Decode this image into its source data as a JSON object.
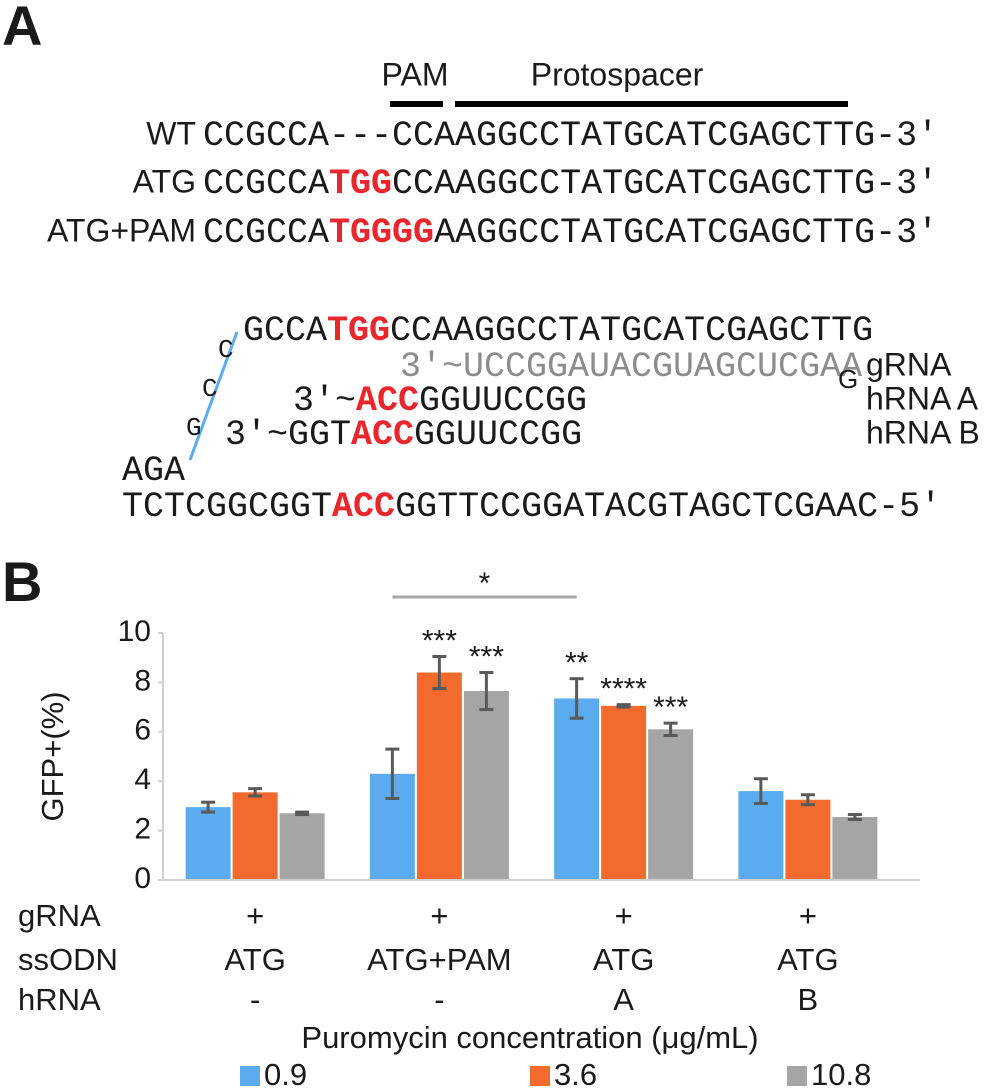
{
  "panel_a": {
    "label": "A",
    "pam": "PAM",
    "protospacer": "Protospacer",
    "rows": [
      {
        "label": "WT",
        "segments": [
          {
            "text": "CCGCCA---CCAAGGCCTATGCATCGAGCTTG-3′",
            "color": "#1a1a1a",
            "bold": false
          }
        ]
      },
      {
        "label": "ATG",
        "segments": [
          {
            "text": "CCGCCA",
            "color": "#1a1a1a",
            "bold": false
          },
          {
            "text": "TGG",
            "color": "#e8262b",
            "bold": true
          },
          {
            "text": "CCAAGGCCTATGCATCGAGCTTG-3′",
            "color": "#1a1a1a",
            "bold": false
          }
        ]
      },
      {
        "label": "ATG+PAM",
        "segments": [
          {
            "text": "CCGCCA",
            "color": "#1a1a1a",
            "bold": false
          },
          {
            "text": "TGGGG",
            "color": "#e8262b",
            "bold": true
          },
          {
            "text": "AAGGCCTATGCATCGAGCTTG-3′",
            "color": "#1a1a1a",
            "bold": false
          }
        ]
      }
    ],
    "duplex": [
      {
        "segments": [
          {
            "text": "GCCA",
            "color": "#1a1a1a",
            "bold": false
          },
          {
            "text": "TGG",
            "color": "#e8262b",
            "bold": true
          },
          {
            "text": "CCAAGGCCTATGCATCGAGCTTG",
            "color": "#1a1a1a",
            "bold": false
          }
        ]
      },
      {
        "segments": [
          {
            "text": "3′~UCCGGAUACGUAGCUCGAA",
            "color": "#8c8c8c",
            "bold": false
          }
        ],
        "tail": {
          "text": "G",
          "color": "#e8262b"
        },
        "label": "gRNA"
      },
      {
        "segments": [
          {
            "text": "3′~",
            "color": "#1a1a1a",
            "bold": false
          },
          {
            "text": "ACC",
            "color": "#e8262b",
            "bold": true
          },
          {
            "text": "GGUUCCGG",
            "color": "#1a1a1a",
            "bold": false
          }
        ],
        "label": "hRNA A"
      },
      {
        "segments": [
          {
            "text": "3′~GGT",
            "color": "#1a1a1a",
            "bold": false
          },
          {
            "text": "ACC",
            "color": "#e8262b",
            "bold": true
          },
          {
            "text": "GGUUCCGG",
            "color": "#1a1a1a",
            "bold": false
          }
        ],
        "label": "hRNA B"
      },
      {
        "segments": [
          {
            "text": "AGA",
            "color": "#1a1a1a",
            "bold": false
          }
        ]
      },
      {
        "segments": [
          {
            "text": "TCTCGGCGGT",
            "color": "#1a1a1a",
            "bold": false
          },
          {
            "text": "ACC",
            "color": "#e8262b",
            "bold": true
          },
          {
            "text": "GGTTCCGGATACGTAGCTCGAAC-5′",
            "color": "#1a1a1a",
            "bold": false
          }
        ]
      }
    ],
    "loop": [
      "G",
      "C",
      "C"
    ],
    "loop_color": "#5aabef"
  },
  "chart_data": {
    "type": "bar",
    "panel_label": "B",
    "ylabel": "GFP+(%)",
    "ylim": [
      0,
      10
    ],
    "yticks": [
      0,
      2,
      4,
      6,
      8,
      10
    ],
    "row_labels": [
      "gRNA",
      "ssODN",
      "hRNA"
    ],
    "categories": [
      [
        "+",
        "ATG",
        "-"
      ],
      [
        "+",
        "ATG+PAM",
        "-"
      ],
      [
        "+",
        "ATG",
        "A"
      ],
      [
        "+",
        "ATG",
        "B"
      ]
    ],
    "legend_title": "Puromycin concentration (μg/mL)",
    "series": [
      {
        "name": "0.9",
        "color": "#5aabef",
        "values": [
          2.95,
          4.3,
          7.35,
          3.6
        ],
        "errors": [
          0.2,
          1.0,
          0.8,
          0.5
        ]
      },
      {
        "name": "3.6",
        "color": "#f26a2e",
        "values": [
          3.55,
          8.4,
          7.05,
          3.25
        ],
        "errors": [
          0.15,
          0.65,
          0.05,
          0.2
        ]
      },
      {
        "name": "10.8",
        "color": "#a5a5a5",
        "values": [
          2.7,
          7.65,
          6.1,
          2.55
        ],
        "errors": [
          0.05,
          0.75,
          0.25,
          0.1
        ]
      }
    ],
    "annotations": [
      {
        "text": "***",
        "category": 1,
        "series": 1
      },
      {
        "text": "***",
        "category": 1,
        "series": 2
      },
      {
        "text": "**",
        "category": 2,
        "series": 0
      },
      {
        "text": "****",
        "category": 2,
        "series": 1
      },
      {
        "text": "***",
        "category": 2,
        "series": 2
      }
    ],
    "bracket": {
      "text": "*",
      "from": {
        "category": 1,
        "series": 0
      },
      "to": {
        "category": 2,
        "series": 0
      }
    }
  }
}
